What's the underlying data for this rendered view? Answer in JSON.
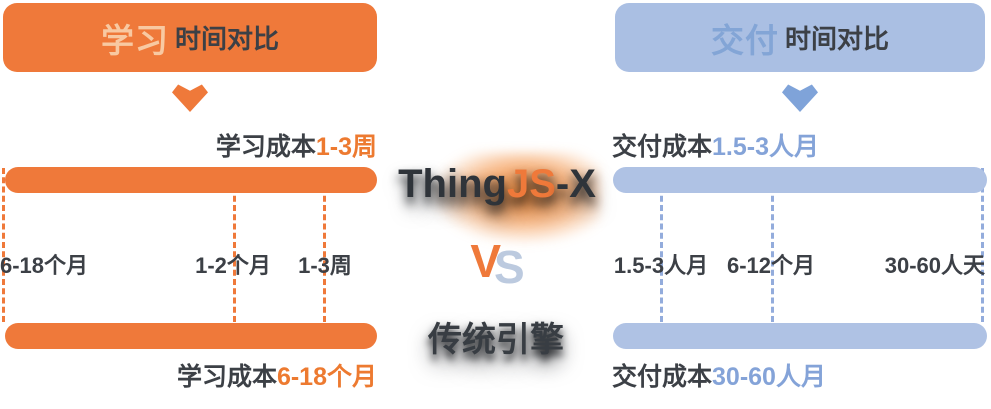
{
  "left": {
    "header": {
      "highlight": "学习",
      "rest": "时间对比"
    },
    "top_caption": {
      "label": "学习成本",
      "value": "1-3周"
    },
    "milestones": [
      "6-18个月",
      "1-2个月",
      "1-3周"
    ],
    "bottom_caption": {
      "label": "学习成本",
      "value": "6-18个月"
    }
  },
  "right": {
    "header": {
      "highlight": "交付",
      "rest": "时间对比"
    },
    "top_caption": {
      "label": "交付成本",
      "value": "1.5-3人月"
    },
    "milestones": [
      "1.5-3人月",
      "6-12个月",
      "30-60人天"
    ],
    "bottom_caption": {
      "label": "交付成本",
      "value": "30-60人月"
    }
  },
  "center": {
    "logo": {
      "prefix": "Thing",
      "accent": "JS",
      "suffix": "-X"
    },
    "vs": {
      "v": "V",
      "s": "S"
    },
    "competitor": "传统引擎"
  },
  "colors": {
    "orange": "#EF793A",
    "orange_text": "#ED7A30",
    "orange_header_highlight": "#F8C9A2",
    "blue_box": "#AABFE3",
    "blue_bar": "#AFC2E4",
    "blue_accent": "#83A5D6",
    "blue_text": "#84A3D8",
    "blue_arrow": "#7FA3D9",
    "blue_dash": "#93ACDC",
    "dark": "#3C4046",
    "logo_dark": "#2F343A",
    "vs_blue": "#BCCADF"
  }
}
